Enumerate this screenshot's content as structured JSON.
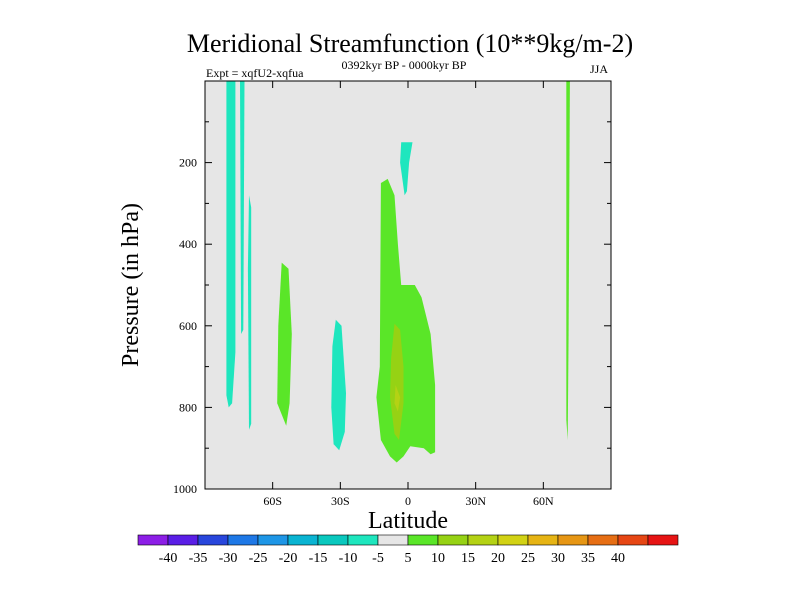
{
  "chart_data": {
    "type": "heatmap",
    "title": "Meridional Streamfunction (10**9kg/m-2)",
    "left_string": "Expt = xqfU2-xqfua",
    "center_string": "0392kyr BP - 0000kyr BP",
    "right_string": "JJA",
    "xlabel": "Latitude",
    "ylabel": "Pressure (in hPa)",
    "xlim": [
      -90,
      90
    ],
    "ylim": [
      1000,
      0
    ],
    "x_ticks": [
      {
        "value": -60,
        "label": "60S"
      },
      {
        "value": -30,
        "label": "30S"
      },
      {
        "value": 0,
        "label": "0"
      },
      {
        "value": 30,
        "label": "30N"
      },
      {
        "value": 60,
        "label": "60N"
      }
    ],
    "y_ticks": [
      {
        "value": 200,
        "label": "200"
      },
      {
        "value": 400,
        "label": "400"
      },
      {
        "value": 600,
        "label": "600"
      },
      {
        "value": 800,
        "label": "800"
      },
      {
        "value": 1000,
        "label": "1000"
      }
    ],
    "background_color": "#e6e6e6",
    "colorbar": {
      "colors": [
        "#8c1ee6",
        "#5a1ee6",
        "#2846dc",
        "#1e78e6",
        "#1e96e6",
        "#0ab4d2",
        "#0ac8be",
        "#1ee6be",
        "#e6e6e6",
        "#5ae628",
        "#96d214",
        "#b4d214",
        "#d2d214",
        "#e6b414",
        "#e69614",
        "#e66e14",
        "#e64614",
        "#e61414"
      ],
      "labels": [
        "-40",
        "-35",
        "-30",
        "-25",
        "-20",
        "-15",
        "-10",
        "-5",
        "5",
        "10",
        "15",
        "20",
        "25",
        "30",
        "35",
        "40"
      ]
    },
    "regions": [
      {
        "name": "neg-sh-polar-cell",
        "color": "#1ee6be",
        "points": [
          [
            -80.5,
            0
          ],
          [
            -76.5,
            0
          ],
          [
            -76.5,
            665
          ],
          [
            -78,
            790
          ],
          [
            -79.5,
            800
          ],
          [
            -80.5,
            770
          ]
        ]
      },
      {
        "name": "neg-sh-strip-1",
        "color": "#1ee6be",
        "points": [
          [
            -74.5,
            0
          ],
          [
            -72.5,
            0
          ],
          [
            -73,
            610
          ],
          [
            -74,
            620
          ]
        ]
      },
      {
        "name": "neg-sh-strip-2",
        "color": "#1ee6be",
        "points": [
          [
            -70.5,
            280
          ],
          [
            -69.5,
            310
          ],
          [
            -69.5,
            840
          ],
          [
            -70.5,
            855
          ],
          [
            -71,
            460
          ]
        ]
      },
      {
        "name": "pos-sh-midlat",
        "color": "#5ae628",
        "points": [
          [
            -56,
            445
          ],
          [
            -53,
            460
          ],
          [
            -51.5,
            620
          ],
          [
            -52.5,
            790
          ],
          [
            -54,
            845
          ],
          [
            -58,
            790
          ],
          [
            -57.5,
            600
          ]
        ]
      },
      {
        "name": "neg-sh-subtropics",
        "color": "#1ee6be",
        "points": [
          [
            -32,
            585
          ],
          [
            -29.5,
            600
          ],
          [
            -27.5,
            765
          ],
          [
            -28,
            860
          ],
          [
            -30.5,
            905
          ],
          [
            -33,
            890
          ],
          [
            -34,
            800
          ],
          [
            -33.5,
            650
          ]
        ]
      },
      {
        "name": "pos-equatorial-core",
        "color": "#5ae628",
        "points": [
          [
            -12,
            250
          ],
          [
            -9,
            240
          ],
          [
            -6,
            280
          ],
          [
            -4.5,
            400
          ],
          [
            -3,
            500
          ],
          [
            3,
            500
          ],
          [
            6,
            530
          ],
          [
            10,
            620
          ],
          [
            12,
            745
          ],
          [
            12,
            910
          ],
          [
            10,
            915
          ],
          [
            7,
            900
          ],
          [
            1,
            895
          ],
          [
            -2,
            920
          ],
          [
            -5,
            935
          ],
          [
            -8,
            920
          ],
          [
            -12,
            880
          ],
          [
            -14,
            775
          ],
          [
            -12.5,
            700
          ]
        ]
      },
      {
        "name": "pos-equatorial-inner",
        "color": "#96d214",
        "points": [
          [
            -6,
            595
          ],
          [
            -3.5,
            610
          ],
          [
            -2,
            700
          ],
          [
            -2,
            790
          ],
          [
            -4,
            880
          ],
          [
            -6,
            865
          ],
          [
            -8,
            775
          ],
          [
            -7.5,
            680
          ]
        ]
      },
      {
        "name": "pos-equatorial-max",
        "color": "#b4d214",
        "points": [
          [
            -5.5,
            745
          ],
          [
            -3.5,
            775
          ],
          [
            -4.5,
            810
          ],
          [
            -6,
            790
          ]
        ]
      },
      {
        "name": "neg-tropical-upper",
        "color": "#1ee6be",
        "points": [
          [
            -3,
            150
          ],
          [
            2,
            150
          ],
          [
            0.5,
            200
          ],
          [
            -0.5,
            270
          ],
          [
            -1.5,
            280
          ],
          [
            -3.5,
            200
          ]
        ]
      },
      {
        "name": "pos-nh-polar-strip",
        "color": "#5ae628",
        "points": [
          [
            70.2,
            0
          ],
          [
            71.8,
            0
          ],
          [
            71.2,
            620
          ],
          [
            70.8,
            880
          ],
          [
            70.2,
            830
          ]
        ]
      }
    ]
  }
}
